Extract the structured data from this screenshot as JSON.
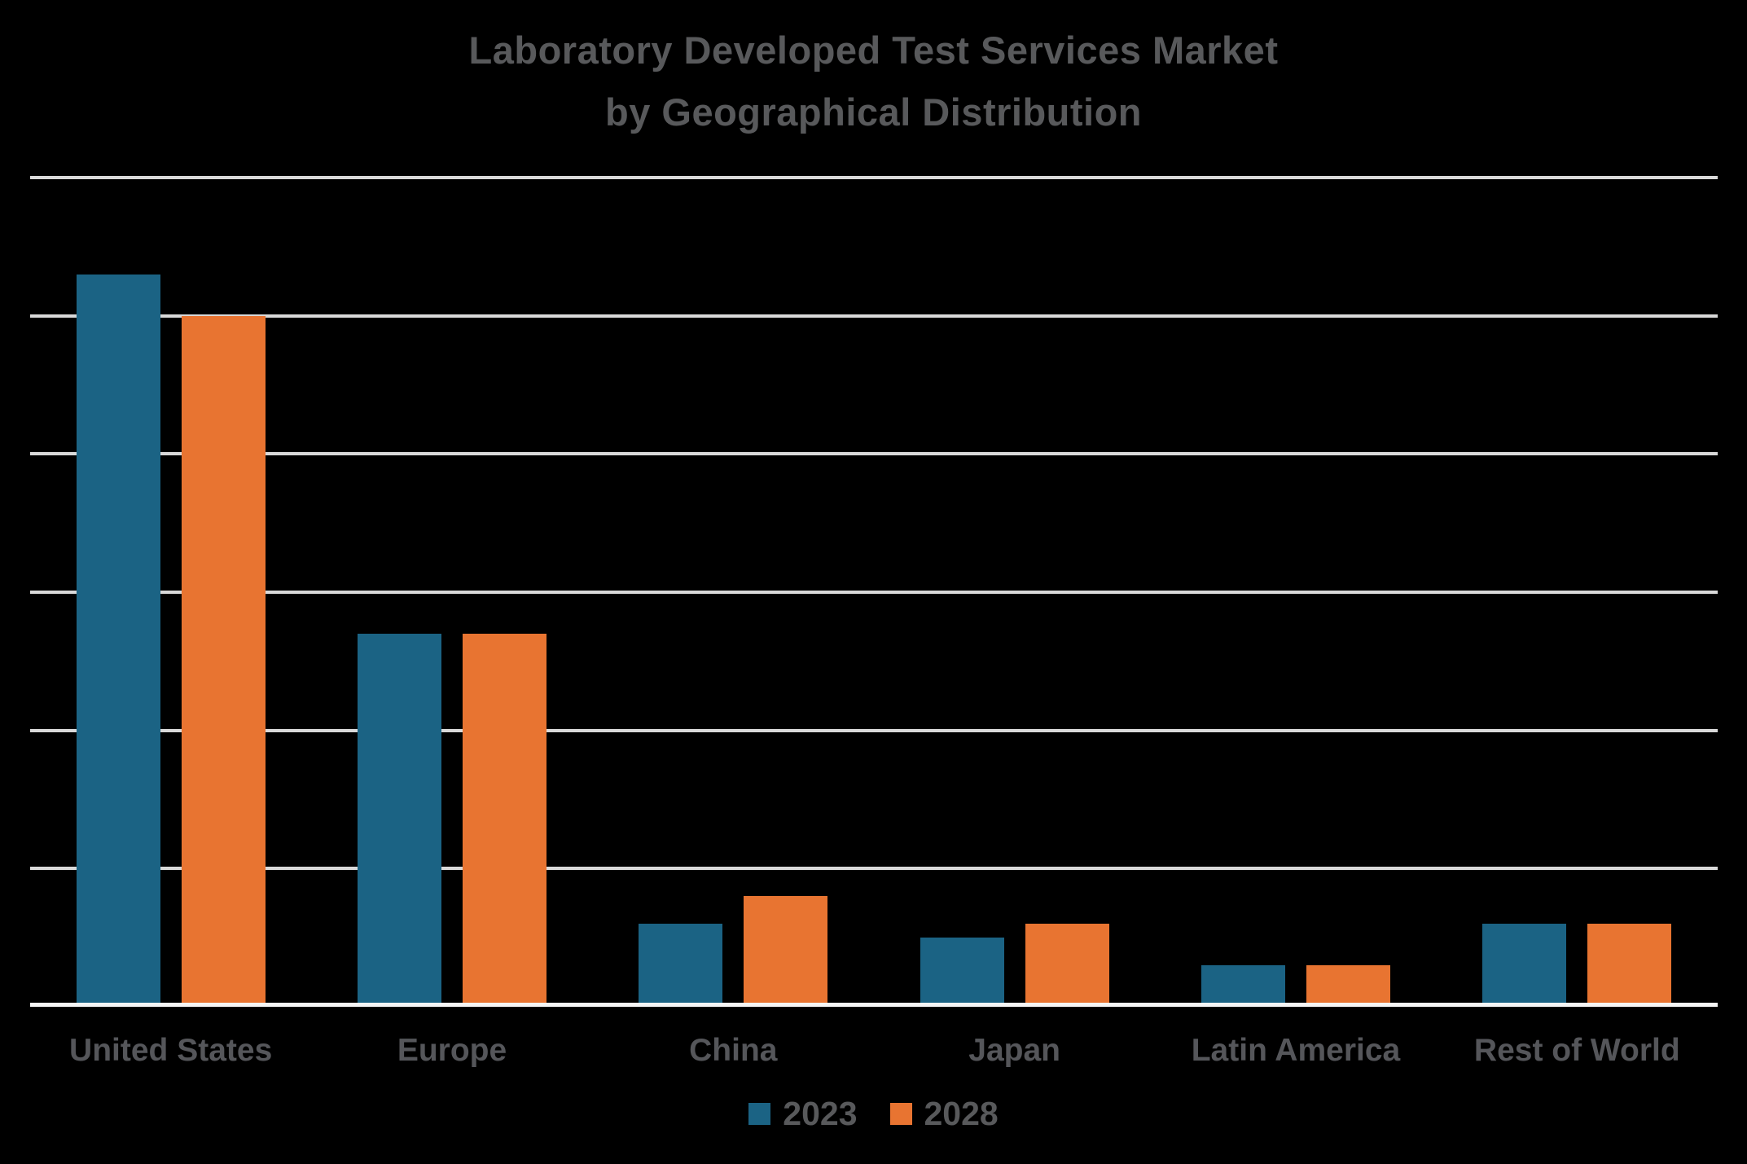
{
  "title": {
    "line1": "Laboratory Developed Test Services Market",
    "line2": "by Geographical Distribution"
  },
  "chart_data": {
    "type": "bar",
    "title": "Laboratory Developed Test Services Market by Geographical Distribution",
    "subtitle": "",
    "xlabel": "",
    "ylabel": "",
    "categories": [
      "United States",
      "Europe",
      "China",
      "Japan",
      "Latin America",
      "Rest of World"
    ],
    "series": [
      {
        "name": "2023",
        "color": "#1B6384",
        "values": [
          53,
          27,
          6,
          5,
          3,
          6
        ]
      },
      {
        "name": "2028",
        "color": "#E87431",
        "values": [
          50,
          27,
          8,
          6,
          3,
          6
        ]
      }
    ],
    "ylim": [
      0,
      60
    ],
    "gridline_step": 10,
    "y_tick_labels_shown": false,
    "grid": true,
    "legend_position": "bottom"
  },
  "legend": {
    "items": [
      {
        "label": "2023",
        "color": "#1B6384"
      },
      {
        "label": "2028",
        "color": "#E87431"
      }
    ]
  },
  "colors": {
    "background": "#000000",
    "gridline": "#D9D9D9",
    "baseline": "#F5F5F5",
    "title_text": "#58595B",
    "category_label_text": "#55565A",
    "legend_text": "#58595B"
  }
}
